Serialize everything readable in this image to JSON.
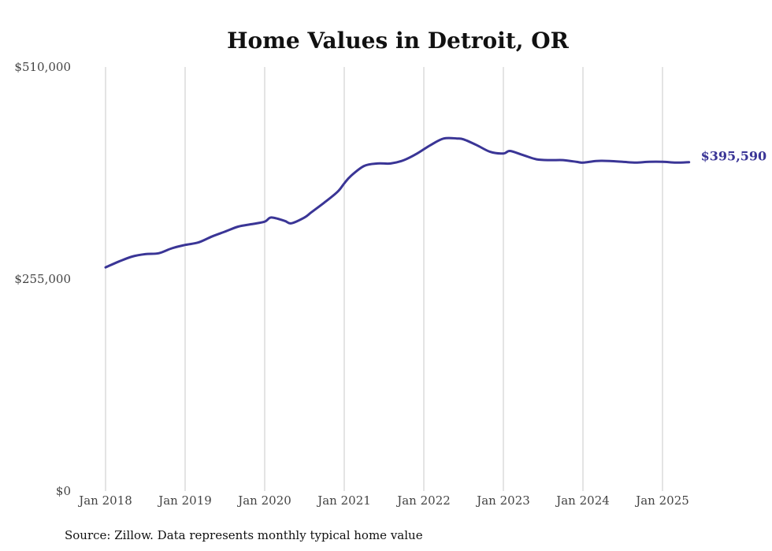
{
  "chart_data": {
    "type": "line",
    "title": "Home Values in Detroit, OR",
    "source": "Source: Zillow. Data represents monthly typical home value",
    "ylim": [
      0,
      510000
    ],
    "y_ticks": [
      {
        "value": 0,
        "label": "$0"
      },
      {
        "value": 255000,
        "label": "$255,000"
      },
      {
        "value": 510000,
        "label": "$510,000"
      }
    ],
    "x_ticks": [
      {
        "value": "2018-01",
        "label": "Jan 2018"
      },
      {
        "value": "2019-01",
        "label": "Jan 2019"
      },
      {
        "value": "2020-01",
        "label": "Jan 2020"
      },
      {
        "value": "2021-01",
        "label": "Jan 2021"
      },
      {
        "value": "2022-01",
        "label": "Jan 2022"
      },
      {
        "value": "2023-01",
        "label": "Jan 2023"
      },
      {
        "value": "2024-01",
        "label": "Jan 2024"
      },
      {
        "value": "2025-01",
        "label": "Jan 2025"
      }
    ],
    "grid": "vertical",
    "line_color": "#3a3596",
    "end_label": "$395,590",
    "series": [
      {
        "x": [
          "2018-01",
          "2018-03",
          "2018-05",
          "2018-07",
          "2018-09",
          "2018-11",
          "2019-01",
          "2019-03",
          "2019-05",
          "2019-07",
          "2019-09",
          "2019-11",
          "2020-01",
          "2020-02",
          "2020-04",
          "2020-05",
          "2020-07",
          "2020-08",
          "2020-10",
          "2020-12",
          "2021-01",
          "2021-02",
          "2021-04",
          "2021-06",
          "2021-08",
          "2021-10",
          "2021-12",
          "2022-02",
          "2022-04",
          "2022-06",
          "2022-07",
          "2022-09",
          "2022-11",
          "2023-01",
          "2023-02",
          "2023-04",
          "2023-06",
          "2023-08",
          "2023-10",
          "2023-12",
          "2024-01",
          "2024-03",
          "2024-05",
          "2024-07",
          "2024-09",
          "2024-11",
          "2025-01",
          "2025-03",
          "2025-05"
        ],
        "values": [
          269000,
          276000,
          282000,
          285000,
          286000,
          292000,
          296000,
          299000,
          306000,
          312000,
          318000,
          321000,
          324000,
          329000,
          325000,
          322000,
          329000,
          335000,
          347000,
          360000,
          370000,
          379000,
          391000,
          394000,
          394000,
          398000,
          406000,
          416000,
          424000,
          424000,
          423000,
          416000,
          408000,
          406000,
          409000,
          404000,
          399000,
          398000,
          398000,
          396000,
          395000,
          397000,
          397000,
          396000,
          395000,
          396000,
          396000,
          395000,
          395590
        ]
      }
    ]
  }
}
